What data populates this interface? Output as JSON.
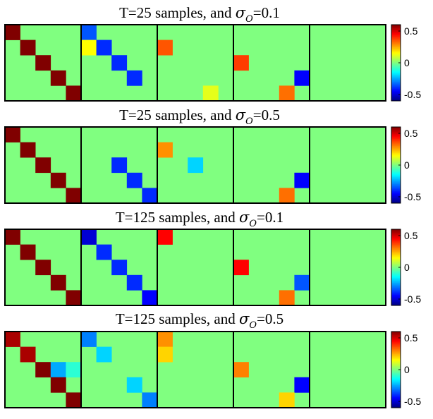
{
  "chart_data": [
    {
      "type": "heatmap",
      "title": {
        "prefix": "T=25 samples, and ",
        "symbol": "σ",
        "subscript": "O",
        "suffix": "=0.1"
      },
      "grid": [
        5,
        5
      ],
      "default_value": 0,
      "colorbar": {
        "colormap": "jet",
        "clim": [
          -0.6,
          0.6
        ],
        "ticks": [
          0.5,
          0,
          -0.5
        ],
        "tick_labels": [
          "0.5",
          "0",
          "-0.5"
        ]
      },
      "panels": [
        {
          "name": "panel-1",
          "cells": [
            [
              0,
              0,
              0.6
            ],
            [
              1,
              1,
              0.6
            ],
            [
              2,
              2,
              0.6
            ],
            [
              3,
              3,
              0.6
            ],
            [
              4,
              4,
              0.6
            ]
          ]
        },
        {
          "name": "panel-2",
          "cells": [
            [
              0,
              0,
              -0.35
            ],
            [
              1,
              0,
              0.15
            ],
            [
              1,
              1,
              -0.4
            ],
            [
              2,
              2,
              -0.4
            ],
            [
              3,
              3,
              -0.4
            ]
          ]
        },
        {
          "name": "panel-3",
          "cells": [
            [
              1,
              0,
              0.35
            ],
            [
              4,
              3,
              0.12
            ]
          ]
        },
        {
          "name": "panel-4",
          "cells": [
            [
              2,
              0,
              0.38
            ],
            [
              3,
              4,
              -0.45
            ],
            [
              4,
              3,
              0.32
            ]
          ]
        },
        {
          "name": "panel-5",
          "cells": []
        }
      ]
    },
    {
      "type": "heatmap",
      "title": {
        "prefix": "T=25 samples, and ",
        "symbol": "σ",
        "subscript": "O",
        "suffix": "=0.5"
      },
      "grid": [
        5,
        5
      ],
      "default_value": 0,
      "colorbar": {
        "colormap": "jet",
        "clim": [
          -0.6,
          0.6
        ],
        "ticks": [
          0.5,
          0,
          -0.5
        ],
        "tick_labels": [
          "0.5",
          "0",
          "-0.5"
        ]
      },
      "panels": [
        {
          "name": "panel-1",
          "cells": [
            [
              0,
              0,
              0.6
            ],
            [
              1,
              1,
              0.6
            ],
            [
              2,
              2,
              0.6
            ],
            [
              3,
              3,
              0.6
            ],
            [
              4,
              4,
              0.6
            ]
          ]
        },
        {
          "name": "panel-2",
          "cells": [
            [
              2,
              2,
              -0.4
            ],
            [
              3,
              3,
              -0.4
            ],
            [
              4,
              4,
              -0.4
            ]
          ]
        },
        {
          "name": "panel-3",
          "cells": [
            [
              1,
              0,
              0.28
            ],
            [
              2,
              2,
              -0.2
            ]
          ]
        },
        {
          "name": "panel-4",
          "cells": [
            [
              3,
              4,
              -0.45
            ],
            [
              4,
              3,
              0.32
            ]
          ]
        },
        {
          "name": "panel-5",
          "cells": []
        }
      ]
    },
    {
      "type": "heatmap",
      "title": {
        "prefix": "T=125 samples, and ",
        "symbol": "σ",
        "subscript": "O",
        "suffix": "=0.1"
      },
      "grid": [
        5,
        5
      ],
      "default_value": 0,
      "colorbar": {
        "colormap": "jet",
        "clim": [
          -0.6,
          0.6
        ],
        "ticks": [
          0.5,
          0,
          -0.5
        ],
        "tick_labels": [
          "0.5",
          "0",
          "-0.5"
        ]
      },
      "panels": [
        {
          "name": "panel-1",
          "cells": [
            [
              0,
              0,
              0.6
            ],
            [
              1,
              1,
              0.6
            ],
            [
              2,
              2,
              0.6
            ],
            [
              3,
              3,
              0.6
            ],
            [
              4,
              4,
              0.6
            ]
          ]
        },
        {
          "name": "panel-2",
          "cells": [
            [
              0,
              0,
              -0.5
            ],
            [
              1,
              1,
              -0.4
            ],
            [
              2,
              2,
              -0.4
            ],
            [
              3,
              3,
              -0.4
            ],
            [
              4,
              4,
              -0.45
            ]
          ]
        },
        {
          "name": "panel-3",
          "cells": [
            [
              0,
              0,
              0.45
            ]
          ]
        },
        {
          "name": "panel-4",
          "cells": [
            [
              2,
              0,
              0.45
            ],
            [
              3,
              4,
              -0.35
            ],
            [
              4,
              3,
              0.32
            ]
          ]
        },
        {
          "name": "panel-5",
          "cells": []
        }
      ]
    },
    {
      "type": "heatmap",
      "title": {
        "prefix": "T=125 samples, and ",
        "symbol": "σ",
        "subscript": "O",
        "suffix": "=0.5"
      },
      "grid": [
        5,
        5
      ],
      "default_value": 0,
      "colorbar": {
        "colormap": "jet",
        "clim": [
          -0.6,
          0.6
        ],
        "ticks": [
          0.5,
          0,
          -0.5
        ],
        "tick_labels": [
          "0.5",
          "0",
          "-0.5"
        ]
      },
      "panels": [
        {
          "name": "panel-1",
          "cells": [
            [
              0,
              0,
              0.55
            ],
            [
              1,
              1,
              0.55
            ],
            [
              2,
              2,
              0.6
            ],
            [
              2,
              3,
              -0.25
            ],
            [
              2,
              4,
              -0.1
            ],
            [
              3,
              3,
              0.6
            ],
            [
              4,
              4,
              0.6
            ]
          ]
        },
        {
          "name": "panel-2",
          "cells": [
            [
              0,
              0,
              -0.3
            ],
            [
              1,
              1,
              -0.2
            ],
            [
              3,
              3,
              -0.2
            ],
            [
              4,
              4,
              -0.3
            ]
          ]
        },
        {
          "name": "panel-3",
          "cells": [
            [
              0,
              0,
              0.28
            ],
            [
              1,
              0,
              0.2
            ]
          ]
        },
        {
          "name": "panel-4",
          "cells": [
            [
              2,
              0,
              0.3
            ],
            [
              3,
              4,
              -0.45
            ],
            [
              4,
              3,
              0.2
            ]
          ]
        },
        {
          "name": "panel-5",
          "cells": []
        }
      ]
    }
  ]
}
